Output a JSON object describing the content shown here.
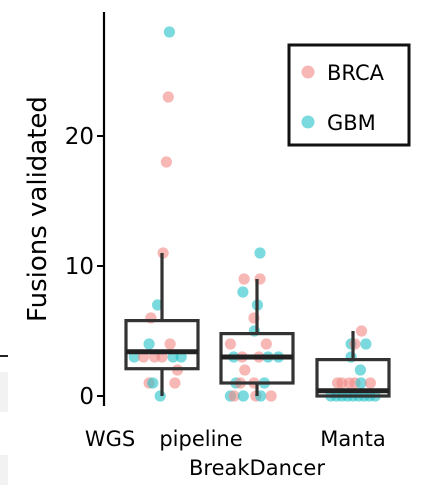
{
  "chart_data": {
    "type": "box",
    "ylabel": "Fusions validated",
    "ylim": [
      -1.5,
      29.5
    ],
    "yticks": [
      0,
      10,
      20
    ],
    "grid": false,
    "legend_position": "top-right",
    "categories": [
      "WGS pipeline",
      "BreakDancer",
      "Manta"
    ],
    "category_labels": [
      {
        "text": "WGS",
        "row": 1
      },
      {
        "text": "pipeline",
        "row": 1
      },
      {
        "text": "Manta",
        "row": 1
      },
      {
        "text": "BreakDancer",
        "row": 2
      }
    ],
    "series": [
      {
        "name": "BRCA",
        "color": "#f08b87"
      },
      {
        "name": "GBM",
        "color": "#2ac3c9"
      }
    ],
    "boxes": [
      {
        "category": "WGS pipeline",
        "whisker_low": 0,
        "q1": 2.1,
        "median": 3.4,
        "q3": 5.8,
        "whisker_high": 11
      },
      {
        "category": "BreakDancer",
        "whisker_low": 0,
        "q1": 1.0,
        "median": 3.0,
        "q3": 4.8,
        "whisker_high": 9
      },
      {
        "category": "Manta",
        "whisker_low": 0,
        "q1": 0,
        "median": 0.4,
        "q3": 2.8,
        "whisker_high": 5
      }
    ],
    "points": [
      {
        "category": "WGS pipeline",
        "series": "GBM",
        "y": 28,
        "jitter": 0.2
      },
      {
        "category": "WGS pipeline",
        "series": "BRCA",
        "y": 23,
        "jitter": 0.17
      },
      {
        "category": "WGS pipeline",
        "series": "BRCA",
        "y": 18,
        "jitter": 0.12
      },
      {
        "category": "WGS pipeline",
        "series": "BRCA",
        "y": 11,
        "jitter": 0.03
      },
      {
        "category": "WGS pipeline",
        "series": "GBM",
        "y": 7,
        "jitter": -0.12
      },
      {
        "category": "WGS pipeline",
        "series": "BRCA",
        "y": 6,
        "jitter": -0.3
      },
      {
        "category": "WGS pipeline",
        "series": "GBM",
        "y": 4,
        "jitter": -0.35
      },
      {
        "category": "WGS pipeline",
        "series": "GBM",
        "y": 3,
        "jitter": -0.75
      },
      {
        "category": "WGS pipeline",
        "series": "BRCA",
        "y": 3,
        "jitter": -0.5
      },
      {
        "category": "WGS pipeline",
        "series": "BRCA",
        "y": 3,
        "jitter": -0.2
      },
      {
        "category": "WGS pipeline",
        "series": "BRCA",
        "y": 3,
        "jitter": 0.0
      },
      {
        "category": "WGS pipeline",
        "series": "GBM",
        "y": 3,
        "jitter": 0.3
      },
      {
        "category": "WGS pipeline",
        "series": "GBM",
        "y": 3,
        "jitter": 0.52
      },
      {
        "category": "WGS pipeline",
        "series": "BRCA",
        "y": 4,
        "jitter": 0.22
      },
      {
        "category": "WGS pipeline",
        "series": "BRCA",
        "y": 2,
        "jitter": 0.42
      },
      {
        "category": "WGS pipeline",
        "series": "BRCA",
        "y": 1,
        "jitter": -0.35
      },
      {
        "category": "WGS pipeline",
        "series": "GBM",
        "y": 1,
        "jitter": -0.25
      },
      {
        "category": "WGS pipeline",
        "series": "BRCA",
        "y": 1,
        "jitter": 0.35
      },
      {
        "category": "WGS pipeline",
        "series": "GBM",
        "y": 0,
        "jitter": -0.05
      },
      {
        "category": "BreakDancer",
        "series": "GBM",
        "y": 11,
        "jitter": 0.08
      },
      {
        "category": "BreakDancer",
        "series": "BRCA",
        "y": 9,
        "jitter": -0.35
      },
      {
        "category": "BreakDancer",
        "series": "BRCA",
        "y": 9,
        "jitter": 0.08
      },
      {
        "category": "BreakDancer",
        "series": "GBM",
        "y": 8,
        "jitter": -0.38
      },
      {
        "category": "BreakDancer",
        "series": "GBM",
        "y": 7,
        "jitter": 0.01
      },
      {
        "category": "BreakDancer",
        "series": "BRCA",
        "y": 6,
        "jitter": -0.08
      },
      {
        "category": "BreakDancer",
        "series": "GBM",
        "y": 5,
        "jitter": -0.07
      },
      {
        "category": "BreakDancer",
        "series": "BRCA",
        "y": 4,
        "jitter": -0.72
      },
      {
        "category": "BreakDancer",
        "series": "BRCA",
        "y": 4,
        "jitter": 0.25
      },
      {
        "category": "BreakDancer",
        "series": "GBM",
        "y": 3,
        "jitter": -0.63
      },
      {
        "category": "BreakDancer",
        "series": "BRCA",
        "y": 3,
        "jitter": -0.4
      },
      {
        "category": "BreakDancer",
        "series": "BRCA",
        "y": 3,
        "jitter": 0.05
      },
      {
        "category": "BreakDancer",
        "series": "GBM",
        "y": 3,
        "jitter": 0.3
      },
      {
        "category": "BreakDancer",
        "series": "GBM",
        "y": 3,
        "jitter": 0.58
      },
      {
        "category": "BreakDancer",
        "series": "BRCA",
        "y": 2,
        "jitter": -0.33
      },
      {
        "category": "BreakDancer",
        "series": "GBM",
        "y": 1,
        "jitter": -0.57
      },
      {
        "category": "BreakDancer",
        "series": "BRCA",
        "y": 1,
        "jitter": -0.45
      },
      {
        "category": "BreakDancer",
        "series": "BRCA",
        "y": 1,
        "jitter": -0.08
      },
      {
        "category": "BreakDancer",
        "series": "GBM",
        "y": 1,
        "jitter": 0.2
      },
      {
        "category": "BreakDancer",
        "series": "GBM",
        "y": 0,
        "jitter": -0.72
      },
      {
        "category": "BreakDancer",
        "series": "BRCA",
        "y": 0,
        "jitter": -0.62
      },
      {
        "category": "BreakDancer",
        "series": "GBM",
        "y": 0,
        "jitter": -0.37
      },
      {
        "category": "BreakDancer",
        "series": "BRCA",
        "y": 0,
        "jitter": -0.03
      },
      {
        "category": "BreakDancer",
        "series": "GBM",
        "y": 0,
        "jitter": 0.1
      },
      {
        "category": "BreakDancer",
        "series": "BRCA",
        "y": 0,
        "jitter": 0.38
      },
      {
        "category": "Manta",
        "series": "BRCA",
        "y": 5,
        "jitter": 0.23
      },
      {
        "category": "Manta",
        "series": "GBM",
        "y": 4,
        "jitter": -0.05
      },
      {
        "category": "Manta",
        "series": "BRCA",
        "y": 4,
        "jitter": 0.05
      },
      {
        "category": "Manta",
        "series": "GBM",
        "y": 4,
        "jitter": 0.35
      },
      {
        "category": "Manta",
        "series": "GBM",
        "y": 3,
        "jitter": -0.05
      },
      {
        "category": "Manta",
        "series": "GBM",
        "y": 2,
        "jitter": 0.2
      },
      {
        "category": "Manta",
        "series": "BRCA",
        "y": 1,
        "jitter": -0.42
      },
      {
        "category": "Manta",
        "series": "BRCA",
        "y": 1,
        "jitter": -0.3
      },
      {
        "category": "Manta",
        "series": "BRCA",
        "y": 1,
        "jitter": -0.1
      },
      {
        "category": "Manta",
        "series": "BRCA",
        "y": 1,
        "jitter": 0.05
      },
      {
        "category": "Manta",
        "series": "GBM",
        "y": 1,
        "jitter": 0.22
      },
      {
        "category": "Manta",
        "series": "BRCA",
        "y": 1,
        "jitter": 0.47
      },
      {
        "category": "Manta",
        "series": "GBM",
        "y": 0,
        "jitter": -0.6
      },
      {
        "category": "Manta",
        "series": "GBM",
        "y": 0,
        "jitter": -0.45
      },
      {
        "category": "Manta",
        "series": "GBM",
        "y": 0,
        "jitter": -0.3
      },
      {
        "category": "Manta",
        "series": "GBM",
        "y": 0,
        "jitter": -0.15
      },
      {
        "category": "Manta",
        "series": "GBM",
        "y": 0,
        "jitter": 0.0
      },
      {
        "category": "Manta",
        "series": "GBM",
        "y": 0,
        "jitter": 0.15
      },
      {
        "category": "Manta",
        "series": "GBM",
        "y": 0,
        "jitter": 0.3
      },
      {
        "category": "Manta",
        "series": "GBM",
        "y": 0,
        "jitter": 0.45
      },
      {
        "category": "Manta",
        "series": "GBM",
        "y": 0,
        "jitter": 0.6
      }
    ]
  }
}
